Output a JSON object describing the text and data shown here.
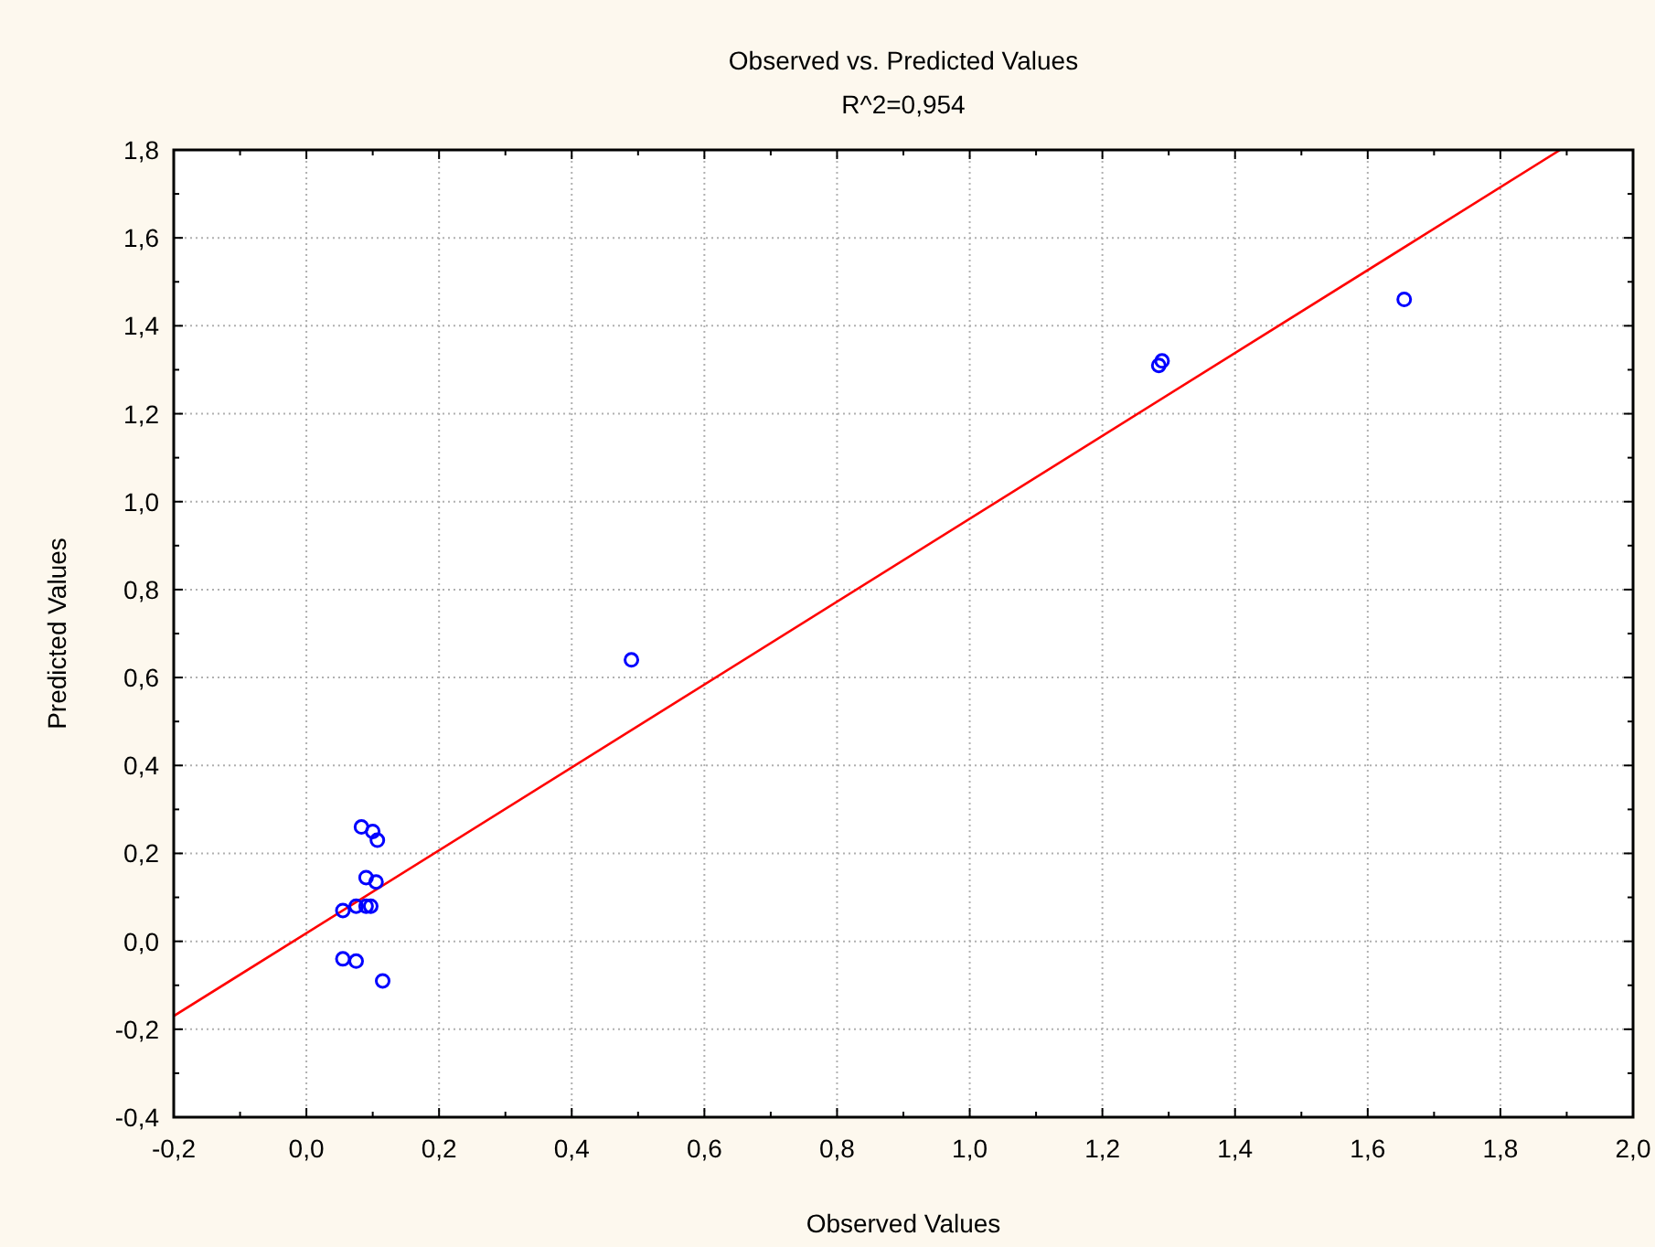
{
  "chart_data": {
    "type": "scatter",
    "title": "Observed vs. Predicted Values",
    "subtitle": "R^2=0,954",
    "xlabel": "Observed Values",
    "ylabel": "Predicted Values",
    "xlim": [
      -0.2,
      2.0
    ],
    "ylim": [
      -0.4,
      1.8
    ],
    "xticks": [
      {
        "value": -0.2,
        "label": "-0,2"
      },
      {
        "value": 0,
        "label": "0,0"
      },
      {
        "value": 0.2,
        "label": "0,2"
      },
      {
        "value": 0.4,
        "label": "0,4"
      },
      {
        "value": 0.6,
        "label": "0,6"
      },
      {
        "value": 0.8,
        "label": "0,8"
      },
      {
        "value": 1.0,
        "label": "1,0"
      },
      {
        "value": 1.2,
        "label": "1,2"
      },
      {
        "value": 1.4,
        "label": "1,4"
      },
      {
        "value": 1.6,
        "label": "1,6"
      },
      {
        "value": 1.8,
        "label": "1,8"
      },
      {
        "value": 2.0,
        "label": "2,0"
      }
    ],
    "yticks": [
      {
        "value": -0.4,
        "label": "-0,4"
      },
      {
        "value": -0.2,
        "label": "-0,2"
      },
      {
        "value": 0,
        "label": "0,0"
      },
      {
        "value": 0.2,
        "label": "0,2"
      },
      {
        "value": 0.4,
        "label": "0,4"
      },
      {
        "value": 0.6,
        "label": "0,6"
      },
      {
        "value": 0.8,
        "label": "0,8"
      },
      {
        "value": 1.0,
        "label": "1,0"
      },
      {
        "value": 1.2,
        "label": "1,2"
      },
      {
        "value": 1.4,
        "label": "1,4"
      },
      {
        "value": 1.6,
        "label": "1,6"
      },
      {
        "value": 1.8,
        "label": "1,8"
      }
    ],
    "grid": true,
    "series": [
      {
        "color": "#0000ff",
        "marker": "circle",
        "x": [
          0.083,
          0.1,
          0.107,
          0.09,
          0.105,
          0.055,
          0.075,
          0.09,
          0.097,
          0.055,
          0.075,
          0.115,
          0.49,
          1.285,
          1.29,
          1.655
        ],
        "values": [
          0.26,
          0.25,
          0.23,
          0.145,
          0.135,
          0.07,
          0.08,
          0.08,
          0.08,
          -0.04,
          -0.045,
          -0.09,
          0.64,
          1.31,
          1.32,
          1.46
        ]
      },
      {
        "type": "line",
        "color": "#ff0000",
        "line_style": "solid",
        "x": [
          -0.2,
          1.89
        ],
        "values": [
          -0.17,
          1.8
        ]
      }
    ]
  }
}
